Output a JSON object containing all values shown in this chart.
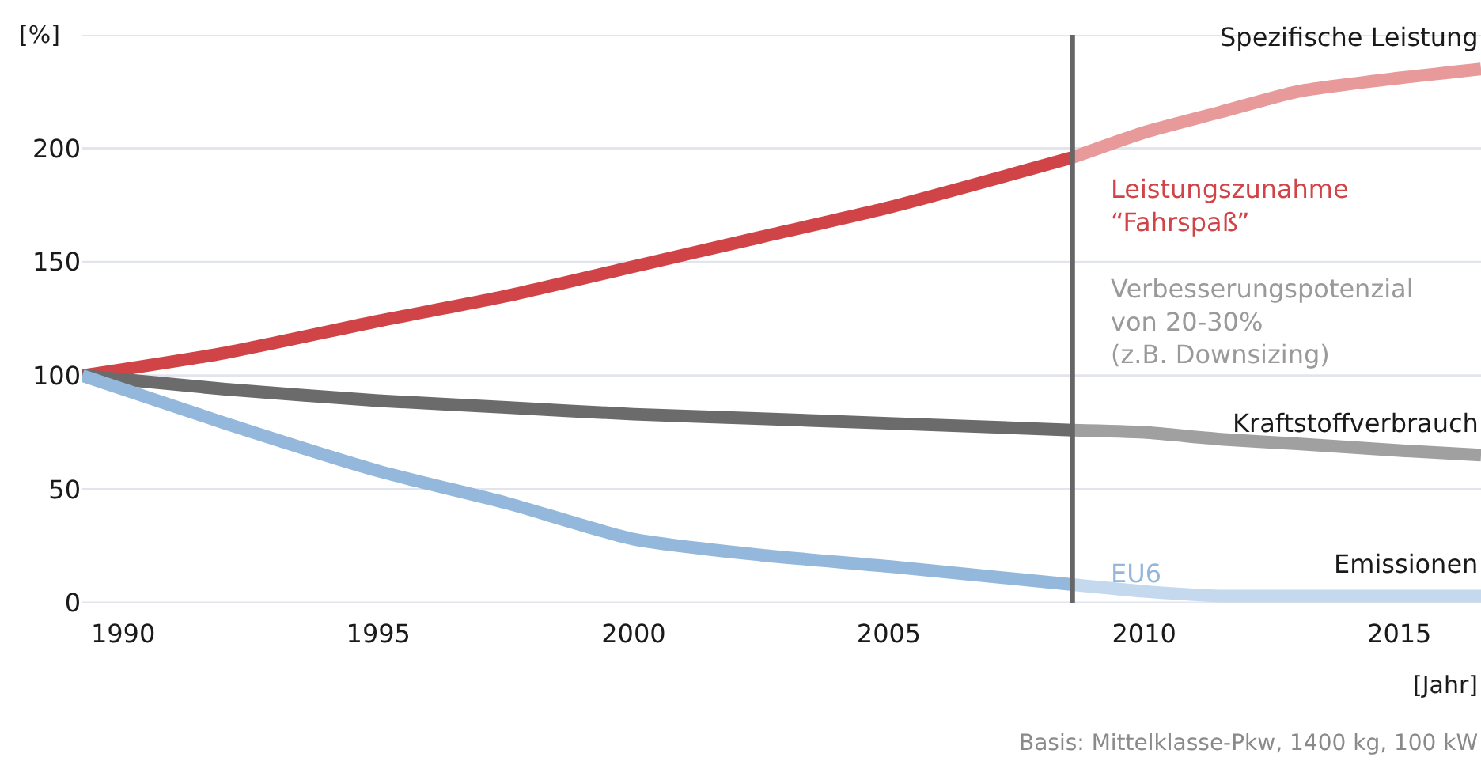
{
  "chart_data": {
    "type": "line",
    "ylabel": "[%]",
    "xlabel": "[Jahr]",
    "xlim": [
      1989.2,
      2016.6
    ],
    "xticks": [
      1990,
      1995,
      2000,
      2005,
      2010,
      2015
    ],
    "ylim": [
      0,
      250
    ],
    "yticks": [
      0,
      50,
      100,
      150,
      200,
      {
        "value": 250,
        "label": null
      }
    ],
    "grid": "y",
    "legend": false,
    "marker": "none",
    "line_style": "solid",
    "series": [
      {
        "color": "#d04448",
        "x": [
          1989.2,
          1992,
          1995,
          1997.5,
          2000,
          2002.5,
          2005,
          2008.6
        ],
        "values": [
          100,
          110,
          124,
          135,
          148,
          161,
          174,
          196
        ]
      },
      {
        "name": "Spezifische Leistung",
        "color": "#e89a9a",
        "x": [
          2008.6,
          2010,
          2011.5,
          2013,
          2015,
          2016.6
        ],
        "values": [
          196,
          207,
          216,
          225,
          231,
          235
        ]
      },
      {
        "color": "#6b6b6b",
        "x": [
          1989.2,
          1992,
          1995,
          1997.5,
          2000,
          2002.5,
          2005,
          2008.6
        ],
        "values": [
          100,
          94,
          89,
          86,
          83,
          81,
          79,
          76
        ]
      },
      {
        "name": "Kraftstoffverbrauch",
        "color": "#a0a0a0",
        "x": [
          2008.6,
          2010,
          2011.5,
          2013,
          2015,
          2016.6
        ],
        "values": [
          76,
          75,
          72,
          70,
          67,
          65
        ]
      },
      {
        "color": "#93b8dc",
        "x": [
          1989.2,
          1992,
          1995,
          1997.5,
          2000,
          2002.5,
          2005,
          2008.6
        ],
        "values": [
          100,
          79,
          58,
          44,
          28,
          21,
          16,
          8
        ]
      },
      {
        "name": "Emissionen",
        "color": "#c5d9ee",
        "x": [
          2008.6,
          2010,
          2011.5,
          2013,
          2015,
          2016.6
        ],
        "values": [
          8,
          5,
          3,
          3,
          3,
          3
        ]
      }
    ],
    "ref_lines": [
      {
        "axis": "x",
        "value": 2008.6,
        "color": "#666666",
        "line_style": "solid"
      }
    ],
    "annotations": [
      "Leistungszunahme\n“Fahrspaß”",
      "Verbesserungspotenzial\nvon 20-30%\n(z.B. Downsizing)",
      "EU6",
      "Basis: Mittelklasse-Pkw, 1400 kg, 100 kW"
    ]
  }
}
